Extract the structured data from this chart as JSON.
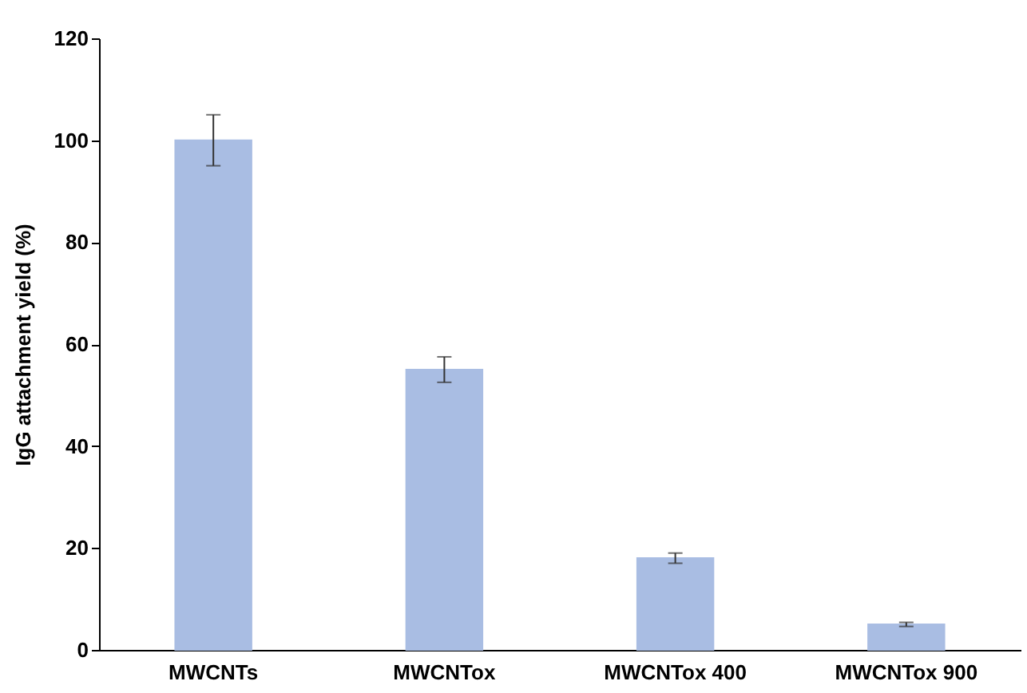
{
  "chart_data": {
    "type": "bar",
    "ylabel": "IgG attachment yield (%)",
    "categories": [
      "MWCNTs",
      "MWCNTox",
      "MWCNTox 400",
      "MWCNTox 900"
    ],
    "values": [
      100,
      55,
      18,
      5
    ],
    "errors": [
      5,
      2.5,
      1,
      0.4
    ],
    "color": "#a9bde3",
    "ylim": [
      0,
      120
    ],
    "yticks": [
      0,
      20,
      40,
      60,
      80,
      100,
      120
    ],
    "grid": false
  }
}
